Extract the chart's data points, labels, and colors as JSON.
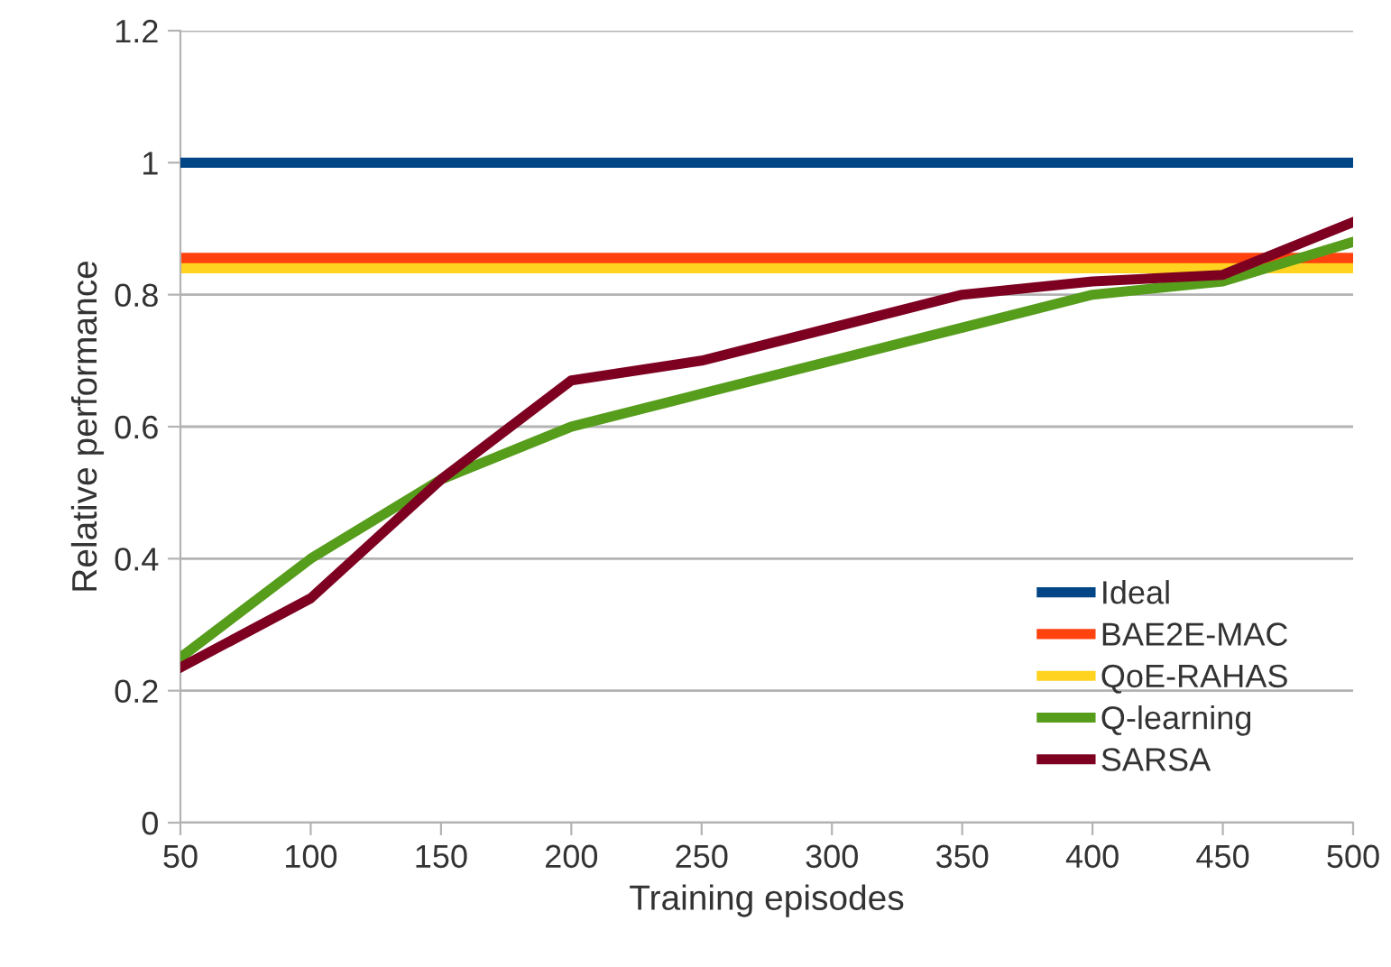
{
  "chart_data": {
    "type": "line",
    "xlabel": "Training episodes",
    "ylabel": "Relative performance",
    "x": [
      50,
      100,
      150,
      200,
      250,
      300,
      350,
      400,
      450,
      500
    ],
    "xlim": [
      50,
      500
    ],
    "xticks": [
      50,
      100,
      150,
      200,
      250,
      300,
      350,
      400,
      450,
      500
    ],
    "ylim": [
      0,
      1.2
    ],
    "yticks": [
      0,
      0.2,
      0.4,
      0.6,
      0.8,
      1,
      1.2
    ],
    "grid": "y",
    "legend": "bottom right",
    "marker": "none",
    "line_style": "solid",
    "series": [
      {
        "name": "Ideal",
        "color": "#004586",
        "values": [
          1,
          1,
          1,
          1,
          1,
          1,
          1,
          1,
          1,
          1
        ]
      },
      {
        "name": "BAE2E-MAC",
        "color": "#ff420e",
        "values": [
          0.85,
          0.85,
          0.85,
          0.85,
          0.85,
          0.85,
          0.85,
          0.85,
          0.85,
          0.85
        ]
      },
      {
        "name": "QoE-RAHAS",
        "color": "#ffd320",
        "values": [
          0.84,
          0.84,
          0.84,
          0.84,
          0.84,
          0.84,
          0.84,
          0.84,
          0.84,
          0.84
        ]
      },
      {
        "name": "Q-learning",
        "color": "#579d1c",
        "values": [
          0.25,
          0.4,
          0.52,
          0.6,
          0.65,
          0.7,
          0.75,
          0.8,
          0.82,
          0.88
        ]
      },
      {
        "name": "SARSA",
        "color": "#7e0021",
        "values": [
          0.235,
          0.34,
          0.52,
          0.67,
          0.7,
          0.75,
          0.8,
          0.82,
          0.83,
          0.91
        ]
      }
    ]
  }
}
